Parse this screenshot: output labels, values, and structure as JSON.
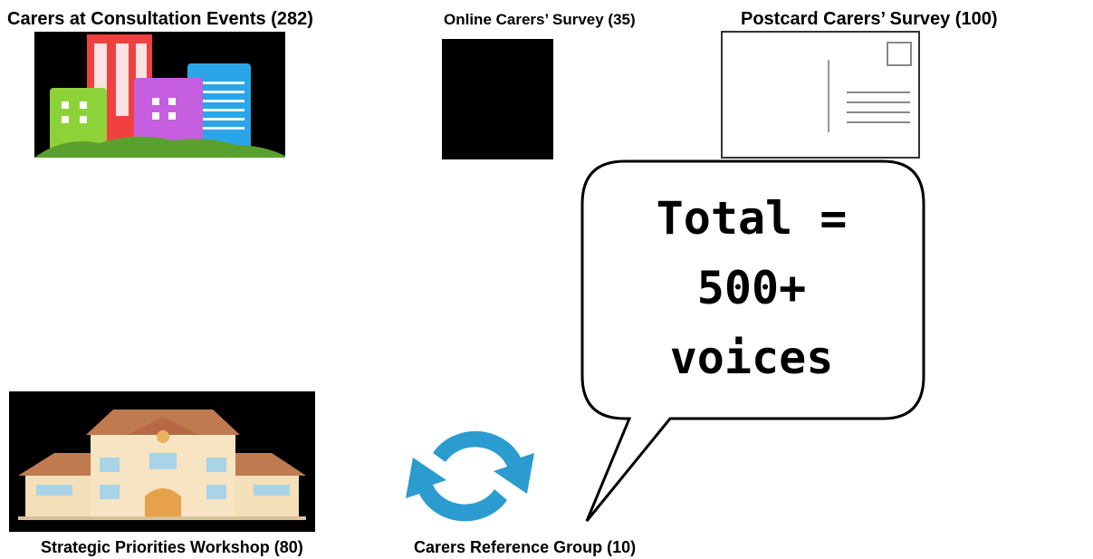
{
  "sources": [
    {
      "label": "Carers at Consultation Events (282)"
    },
    {
      "label": "Online Carers’ Survey (35)"
    },
    {
      "label": "Postcard Carers’ Survey (100)"
    },
    {
      "label": "Strategic Priorities Workshop (80)"
    },
    {
      "label": "Carers Reference Group (10)"
    }
  ],
  "callout": {
    "lines": [
      "Total =",
      "500+",
      "voices"
    ]
  }
}
